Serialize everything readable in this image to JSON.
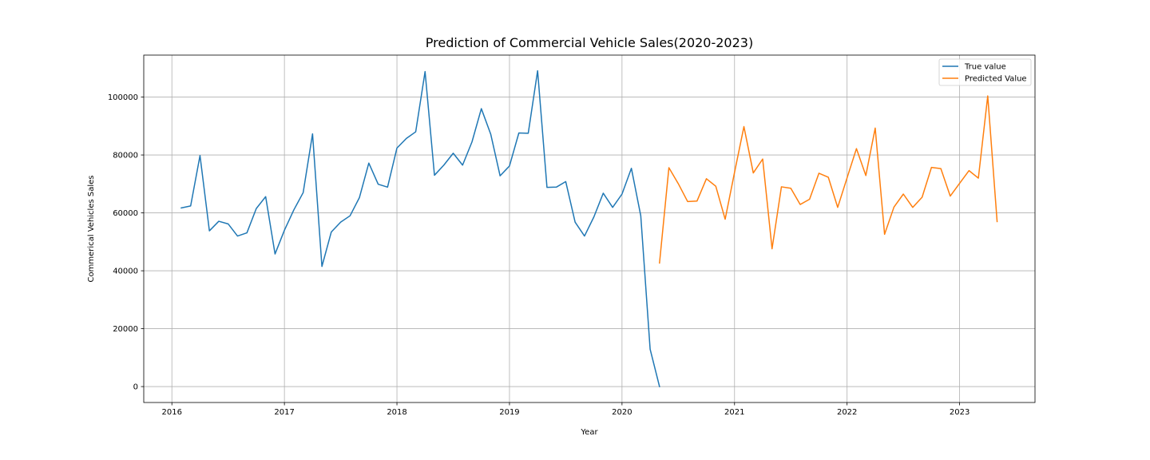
{
  "chart_data": {
    "type": "line",
    "title": "Prediction of Commercial Vehicle Sales(2020-2023)",
    "xlabel": "Year",
    "ylabel": "Commerical Vehicles Sales",
    "xlim": [
      2015.75,
      2023.67
    ],
    "ylim": [
      -5500,
      114500
    ],
    "x_ticks": [
      2016,
      2017,
      2018,
      2019,
      2020,
      2021,
      2022,
      2023
    ],
    "x_tick_labels": [
      "2016",
      "2017",
      "2018",
      "2019",
      "2020",
      "2021",
      "2022",
      "2023"
    ],
    "y_ticks": [
      0,
      20000,
      40000,
      60000,
      80000,
      100000
    ],
    "y_tick_labels": [
      "0",
      "20000",
      "40000",
      "60000",
      "80000",
      "100000"
    ],
    "grid": true,
    "legend_position": "top-right",
    "series": [
      {
        "name": "True value",
        "color": "#1f77b4",
        "points": [
          [
            "2016-01",
            61700
          ],
          [
            "2016-02",
            62400
          ],
          [
            "2016-03",
            79800
          ],
          [
            "2016-04",
            53800
          ],
          [
            "2016-05",
            57100
          ],
          [
            "2016-06",
            56200
          ],
          [
            "2016-07",
            52000
          ],
          [
            "2016-08",
            53100
          ],
          [
            "2016-09",
            61500
          ],
          [
            "2016-10",
            65600
          ],
          [
            "2016-11",
            45800
          ],
          [
            "2016-12",
            54000
          ],
          [
            "2017-01",
            61000
          ],
          [
            "2017-02",
            67000
          ],
          [
            "2017-03",
            87300
          ],
          [
            "2017-04",
            41500
          ],
          [
            "2017-05",
            53400
          ],
          [
            "2017-06",
            56800
          ],
          [
            "2017-07",
            59000
          ],
          [
            "2017-08",
            65300
          ],
          [
            "2017-09",
            77200
          ],
          [
            "2017-10",
            69900
          ],
          [
            "2017-11",
            68900
          ],
          [
            "2017-12",
            82400
          ],
          [
            "2018-01",
            85700
          ],
          [
            "2018-02",
            88000
          ],
          [
            "2018-03",
            108800
          ],
          [
            "2018-04",
            73000
          ],
          [
            "2018-05",
            76500
          ],
          [
            "2018-06",
            80600
          ],
          [
            "2018-07",
            76500
          ],
          [
            "2018-08",
            84500
          ],
          [
            "2018-09",
            96000
          ],
          [
            "2018-10",
            87200
          ],
          [
            "2018-11",
            72800
          ],
          [
            "2018-12",
            76200
          ],
          [
            "2019-01",
            87600
          ],
          [
            "2019-02",
            87500
          ],
          [
            "2019-03",
            109100
          ],
          [
            "2019-04",
            68800
          ],
          [
            "2019-05",
            68900
          ],
          [
            "2019-06",
            70800
          ],
          [
            "2019-07",
            56800
          ],
          [
            "2019-08",
            52000
          ],
          [
            "2019-09",
            58600
          ],
          [
            "2019-10",
            66800
          ],
          [
            "2019-11",
            61900
          ],
          [
            "2019-12",
            66500
          ],
          [
            "2020-01",
            75400
          ],
          [
            "2020-02",
            59000
          ],
          [
            "2020-03",
            12900
          ],
          [
            "2020-04",
            0
          ]
        ]
      },
      {
        "name": "Predicted Value",
        "color": "#ff7f0e",
        "points": [
          [
            "2020-04",
            42700
          ],
          [
            "2020-05",
            75600
          ],
          [
            "2020-06",
            70100
          ],
          [
            "2020-07",
            63900
          ],
          [
            "2020-08",
            64100
          ],
          [
            "2020-09",
            71800
          ],
          [
            "2020-10",
            69200
          ],
          [
            "2020-11",
            57800
          ],
          [
            "2020-12",
            74000
          ],
          [
            "2021-01",
            89800
          ],
          [
            "2021-02",
            73800
          ],
          [
            "2021-03",
            78600
          ],
          [
            "2021-04",
            47600
          ],
          [
            "2021-05",
            69000
          ],
          [
            "2021-06",
            68500
          ],
          [
            "2021-07",
            62900
          ],
          [
            "2021-08",
            64700
          ],
          [
            "2021-09",
            73700
          ],
          [
            "2021-10",
            72300
          ],
          [
            "2021-11",
            61900
          ],
          [
            "2021-12",
            72100
          ],
          [
            "2022-01",
            82200
          ],
          [
            "2022-02",
            72900
          ],
          [
            "2022-03",
            89300
          ],
          [
            "2022-04",
            52600
          ],
          [
            "2022-05",
            62000
          ],
          [
            "2022-06",
            66500
          ],
          [
            "2022-07",
            61900
          ],
          [
            "2022-08",
            65400
          ],
          [
            "2022-09",
            75700
          ],
          [
            "2022-10",
            75300
          ],
          [
            "2022-11",
            65800
          ],
          [
            "2022-12",
            70200
          ],
          [
            "2023-01",
            74600
          ],
          [
            "2023-02",
            72000
          ],
          [
            "2023-03",
            100400
          ],
          [
            "2023-04",
            57000
          ]
        ]
      }
    ]
  }
}
